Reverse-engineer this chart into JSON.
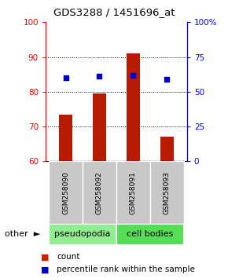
{
  "title": "GDS3288 / 1451696_at",
  "categories": [
    "GSM258090",
    "GSM258092",
    "GSM258091",
    "GSM258093"
  ],
  "bar_values": [
    73.5,
    79.5,
    91.0,
    67.0
  ],
  "blue_values": [
    84.0,
    84.5,
    84.8,
    83.5
  ],
  "bar_color": "#b81c00",
  "blue_color": "#0000cc",
  "ylim": [
    60,
    100
  ],
  "yticks_left": [
    60,
    70,
    80,
    90,
    100
  ],
  "yticks_right": [
    0,
    25,
    50,
    75,
    100
  ],
  "yticks_right_labels": [
    "0",
    "25",
    "50",
    "75",
    "100%"
  ],
  "right_ylim": [
    0,
    100
  ],
  "groups": [
    {
      "label": "pseudopodia",
      "indices": [
        0,
        1
      ],
      "color": "#90ee90"
    },
    {
      "label": "cell bodies",
      "indices": [
        2,
        3
      ],
      "color": "#55dd55"
    }
  ],
  "group_row_color": "#c8c8c8",
  "legend_count_color": "#cc2200",
  "legend_pct_color": "#0000cc",
  "bar_width": 0.4,
  "title_fontsize": 9.5
}
